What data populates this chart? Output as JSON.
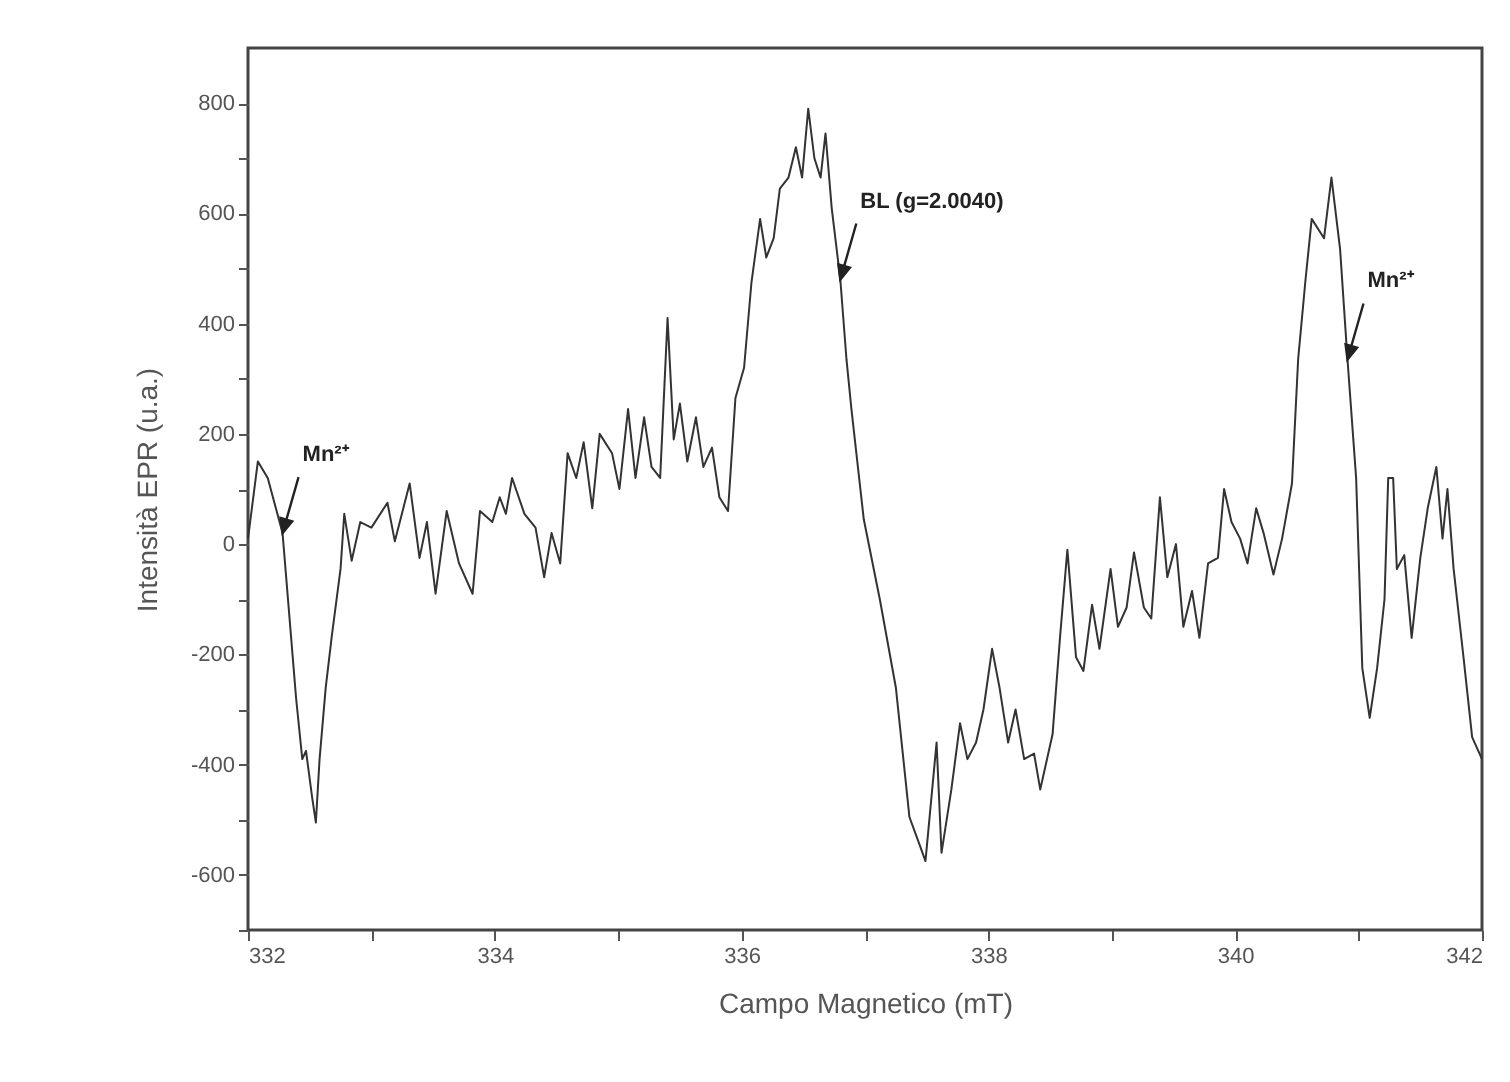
{
  "chart_data": {
    "type": "line",
    "xlabel": "Campo Magnetico (mT)",
    "ylabel": "Intensità EPR (u.a.)",
    "xlim": [
      332,
      342
    ],
    "ylim": [
      -700,
      900
    ],
    "xticks": [
      332,
      {
        "value": 333,
        "label": null
      },
      334,
      {
        "value": 335,
        "label": null
      },
      336,
      {
        "value": 337,
        "label": null
      },
      338,
      {
        "value": 339,
        "label": null
      },
      340,
      {
        "value": 341,
        "label": null
      },
      342
    ],
    "yticks": [
      {
        "value": -700,
        "label": null
      },
      -600,
      {
        "value": -500,
        "label": null
      },
      -400,
      {
        "value": -300,
        "label": null
      },
      -200,
      {
        "value": -100,
        "label": null
      },
      0,
      {
        "value": 100,
        "label": null
      },
      200,
      {
        "value": 300,
        "label": null
      },
      400,
      {
        "value": 500,
        "label": null
      },
      600,
      {
        "value": 700,
        "label": null
      },
      800
    ],
    "grid": false,
    "marker": "none",
    "line_style": "solid",
    "annotations": [
      {
        "text": "Mn²⁺",
        "x": 332.28,
        "y": 20
      },
      {
        "text": "BL (g=2.0040)",
        "x": 336.8,
        "y": 480
      },
      {
        "text": "Mn²⁺",
        "x": 340.91,
        "y": 335
      }
    ],
    "series": [
      {
        "color": "#333333",
        "x": [
          332.0,
          332.08,
          332.16,
          332.28,
          332.39,
          332.44,
          332.47,
          332.52,
          332.55,
          332.58,
          332.63,
          332.68,
          332.75,
          332.78,
          332.84,
          332.91,
          333.0,
          333.13,
          333.19,
          333.31,
          333.39,
          333.45,
          333.52,
          333.61,
          333.71,
          333.82,
          333.88,
          333.98,
          334.04,
          334.09,
          334.14,
          334.24,
          334.33,
          334.4,
          334.46,
          334.53,
          334.59,
          334.66,
          334.72,
          334.79,
          334.85,
          334.95,
          335.01,
          335.08,
          335.14,
          335.21,
          335.27,
          335.34,
          335.4,
          335.45,
          335.5,
          335.56,
          335.63,
          335.69,
          335.76,
          335.82,
          335.89,
          335.95,
          336.02,
          336.08,
          336.15,
          336.2,
          336.26,
          336.31,
          336.38,
          336.44,
          336.49,
          336.54,
          336.59,
          336.64,
          336.68,
          336.73,
          336.8,
          336.85,
          336.89,
          336.99,
          337.12,
          337.25,
          337.36,
          337.45,
          337.49,
          337.58,
          337.62,
          337.7,
          337.77,
          337.83,
          337.9,
          337.96,
          338.03,
          338.09,
          338.16,
          338.22,
          338.29,
          338.37,
          338.42,
          338.52,
          338.58,
          338.64,
          338.71,
          338.77,
          338.84,
          338.9,
          338.99,
          339.05,
          339.12,
          339.18,
          339.26,
          339.32,
          339.39,
          339.45,
          339.52,
          339.58,
          339.65,
          339.71,
          339.78,
          339.86,
          339.91,
          339.97,
          340.04,
          340.1,
          340.17,
          340.23,
          340.31,
          340.38,
          340.46,
          340.51,
          340.57,
          340.62,
          340.72,
          340.78,
          340.85,
          340.91,
          340.98,
          341.03,
          341.09,
          341.15,
          341.21,
          341.24,
          341.28,
          341.31,
          341.37,
          341.43,
          341.5,
          341.56,
          341.63,
          341.68,
          341.72,
          341.77,
          341.85,
          341.92,
          342.0
        ],
        "values": [
          10,
          150,
          120,
          20,
          -280,
          -390,
          -375,
          -460,
          -505,
          -390,
          -260,
          -165,
          -45,
          55,
          -30,
          40,
          30,
          75,
          5,
          110,
          -25,
          40,
          -90,
          60,
          -35,
          -90,
          60,
          40,
          85,
          55,
          120,
          55,
          30,
          -60,
          20,
          -35,
          165,
          120,
          185,
          65,
          200,
          165,
          100,
          245,
          120,
          230,
          140,
          120,
          410,
          190,
          255,
          150,
          230,
          140,
          175,
          85,
          60,
          265,
          320,
          475,
          590,
          520,
          555,
          645,
          665,
          720,
          665,
          790,
          700,
          665,
          745,
          610,
          480,
          335,
          245,
          45,
          -100,
          -260,
          -495,
          -550,
          -575,
          -360,
          -560,
          -445,
          -325,
          -390,
          -360,
          -300,
          -190,
          -260,
          -360,
          -300,
          -390,
          -380,
          -445,
          -345,
          -170,
          -10,
          -205,
          -230,
          -110,
          -190,
          -45,
          -150,
          -115,
          -15,
          -115,
          -135,
          85,
          -60,
          0,
          -150,
          -85,
          -170,
          -35,
          -25,
          100,
          40,
          10,
          -35,
          65,
          20,
          -55,
          10,
          110,
          335,
          480,
          590,
          555,
          665,
          535,
          335,
          120,
          -225,
          -315,
          -225,
          -100,
          120,
          120,
          -45,
          -20,
          -170,
          -25,
          65,
          140,
          10,
          100,
          -45,
          -205,
          -350,
          -390
        ]
      }
    ]
  }
}
